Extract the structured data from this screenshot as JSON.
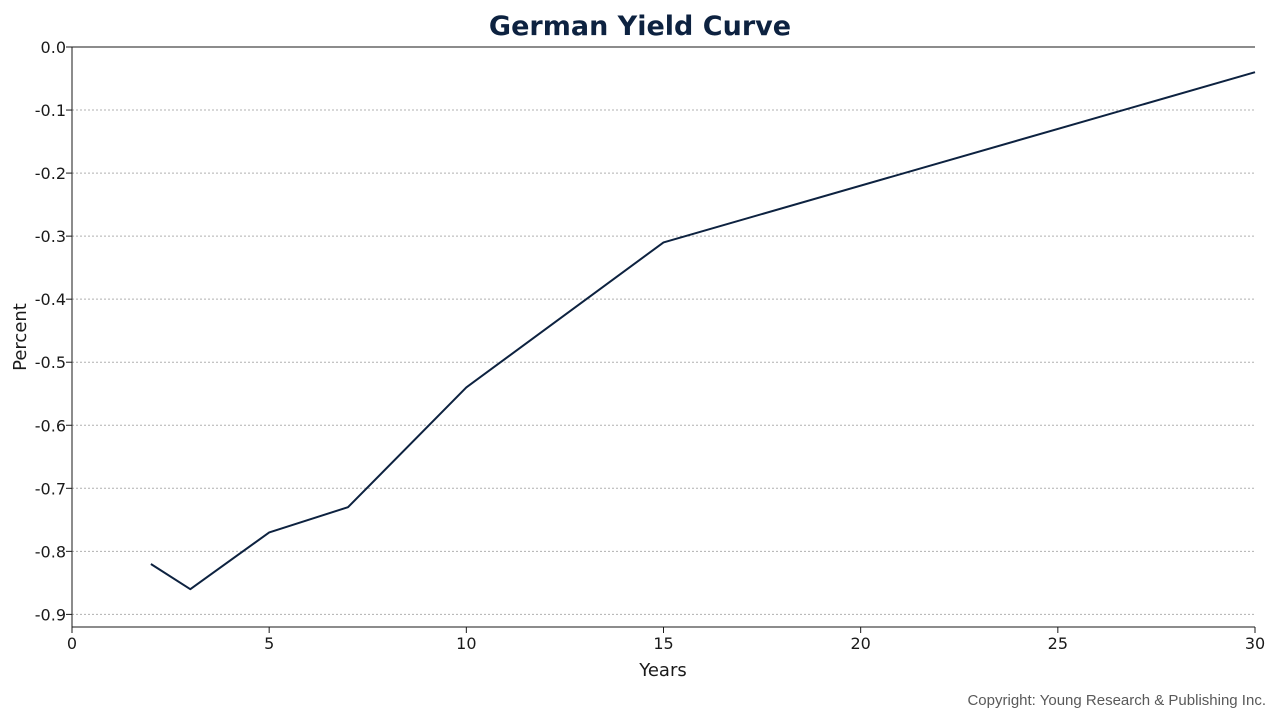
{
  "chart_data": {
    "type": "line",
    "title": "German Yield Curve",
    "xlabel": "Years",
    "ylabel": "Percent",
    "xlim": [
      0,
      30
    ],
    "ylim": [
      -0.92,
      0.0
    ],
    "xticks": [
      0,
      5,
      10,
      15,
      20,
      25,
      30
    ],
    "xtick_labels": [
      "0",
      "5",
      "10",
      "15",
      "20",
      "25",
      "30"
    ],
    "yticks": [
      0.0,
      -0.1,
      -0.2,
      -0.3,
      -0.4,
      -0.5,
      -0.6,
      -0.7,
      -0.8,
      -0.9
    ],
    "ytick_labels": [
      "0.0",
      "-0.1",
      "-0.2",
      "-0.3",
      "-0.4",
      "-0.5",
      "-0.6",
      "-0.7",
      "-0.8",
      "-0.9"
    ],
    "grid": "horizontal dotted",
    "series": [
      {
        "x": [
          2,
          3,
          5,
          7,
          10,
          15,
          30
        ],
        "y": [
          -0.82,
          -0.86,
          -0.77,
          -0.73,
          -0.54,
          -0.31,
          -0.04
        ],
        "color": "#0d2240"
      }
    ],
    "annotation": "Copyright: Young Research & Publishing Inc."
  },
  "colors": {
    "title": "#0d2240",
    "line": "#0d2240",
    "axis": "#1a1a1a",
    "grid": "#b0b0b0",
    "copyright": "#595959"
  }
}
